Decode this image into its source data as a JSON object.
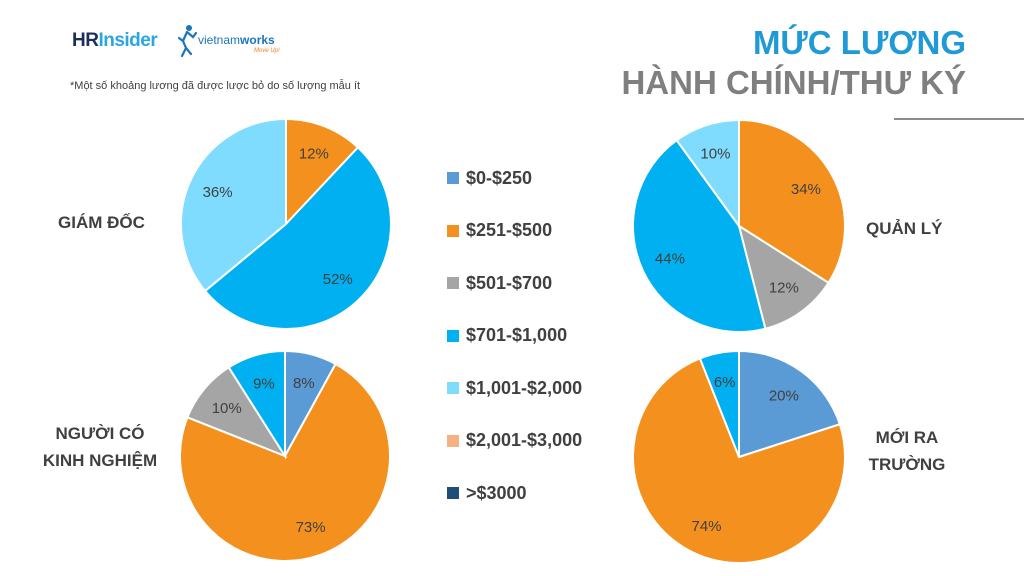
{
  "logo": {
    "hr": "HR",
    "insider": "Insider",
    "vn_pre": "vietnam",
    "vn_bold": "works",
    "tagline": "Move Up!"
  },
  "note": "*Một số khoảng lương đã được lược bỏ do số lượng mẫu ít",
  "title": {
    "line1": "MỨC LƯƠNG",
    "line2": "HÀNH CHÍNH/THƯ KÝ"
  },
  "colors": {
    "$0-$250": "#5b9bd5",
    "$251-$500": "#f4911e",
    "$501-$700": "#a5a5a5",
    "$701-$1,000": "#00b0f0",
    "$1,001-$2,000": "#7fdcff",
    "$2,001-$3,000": "#f4b183",
    ">$3000": "#1f4e79"
  },
  "chart_data": [
    {
      "type": "pie",
      "title": "GIÁM ĐỐC",
      "slices": [
        {
          "label": "$251-$500",
          "value": 12,
          "display": "12%"
        },
        {
          "label": "$701-$1,000",
          "value": 52,
          "display": "52%"
        },
        {
          "label": "$1,001-$2,000",
          "value": 36,
          "display": "36%"
        }
      ],
      "legend_position": "center"
    },
    {
      "type": "pie",
      "title": "QUẢN LÝ",
      "slices": [
        {
          "label": "$251-$500",
          "value": 34,
          "display": "34%"
        },
        {
          "label": "$501-$700",
          "value": 12,
          "display": "12%"
        },
        {
          "label": "$701-$1,000",
          "value": 44,
          "display": "44%"
        },
        {
          "label": "$1,001-$2,000",
          "value": 10,
          "display": "10%"
        }
      ]
    },
    {
      "type": "pie",
      "title_lines": [
        "NGƯỜI CÓ",
        "KINH NGHIỆM"
      ],
      "slices": [
        {
          "label": "$0-$250",
          "value": 8,
          "display": "8%"
        },
        {
          "label": "$251-$500",
          "value": 73,
          "display": "73%"
        },
        {
          "label": "$501-$700",
          "value": 10,
          "display": "10%"
        },
        {
          "label": "$701-$1,000",
          "value": 9,
          "display": "9%"
        }
      ]
    },
    {
      "type": "pie",
      "title_lines": [
        "MỚI RA",
        "TRƯỜNG"
      ],
      "slices": [
        {
          "label": "$0-$250",
          "value": 20,
          "display": "20%"
        },
        {
          "label": "$251-$500",
          "value": 74,
          "display": "74%"
        },
        {
          "label": "$701-$1,000",
          "value": 6,
          "display": "6%"
        }
      ]
    }
  ],
  "legend": [
    "$0-$250",
    "$251-$500",
    "$501-$700",
    "$701-$1,000",
    "$1,001-$2,000",
    "$2,001-$3,000",
    ">$3000"
  ]
}
